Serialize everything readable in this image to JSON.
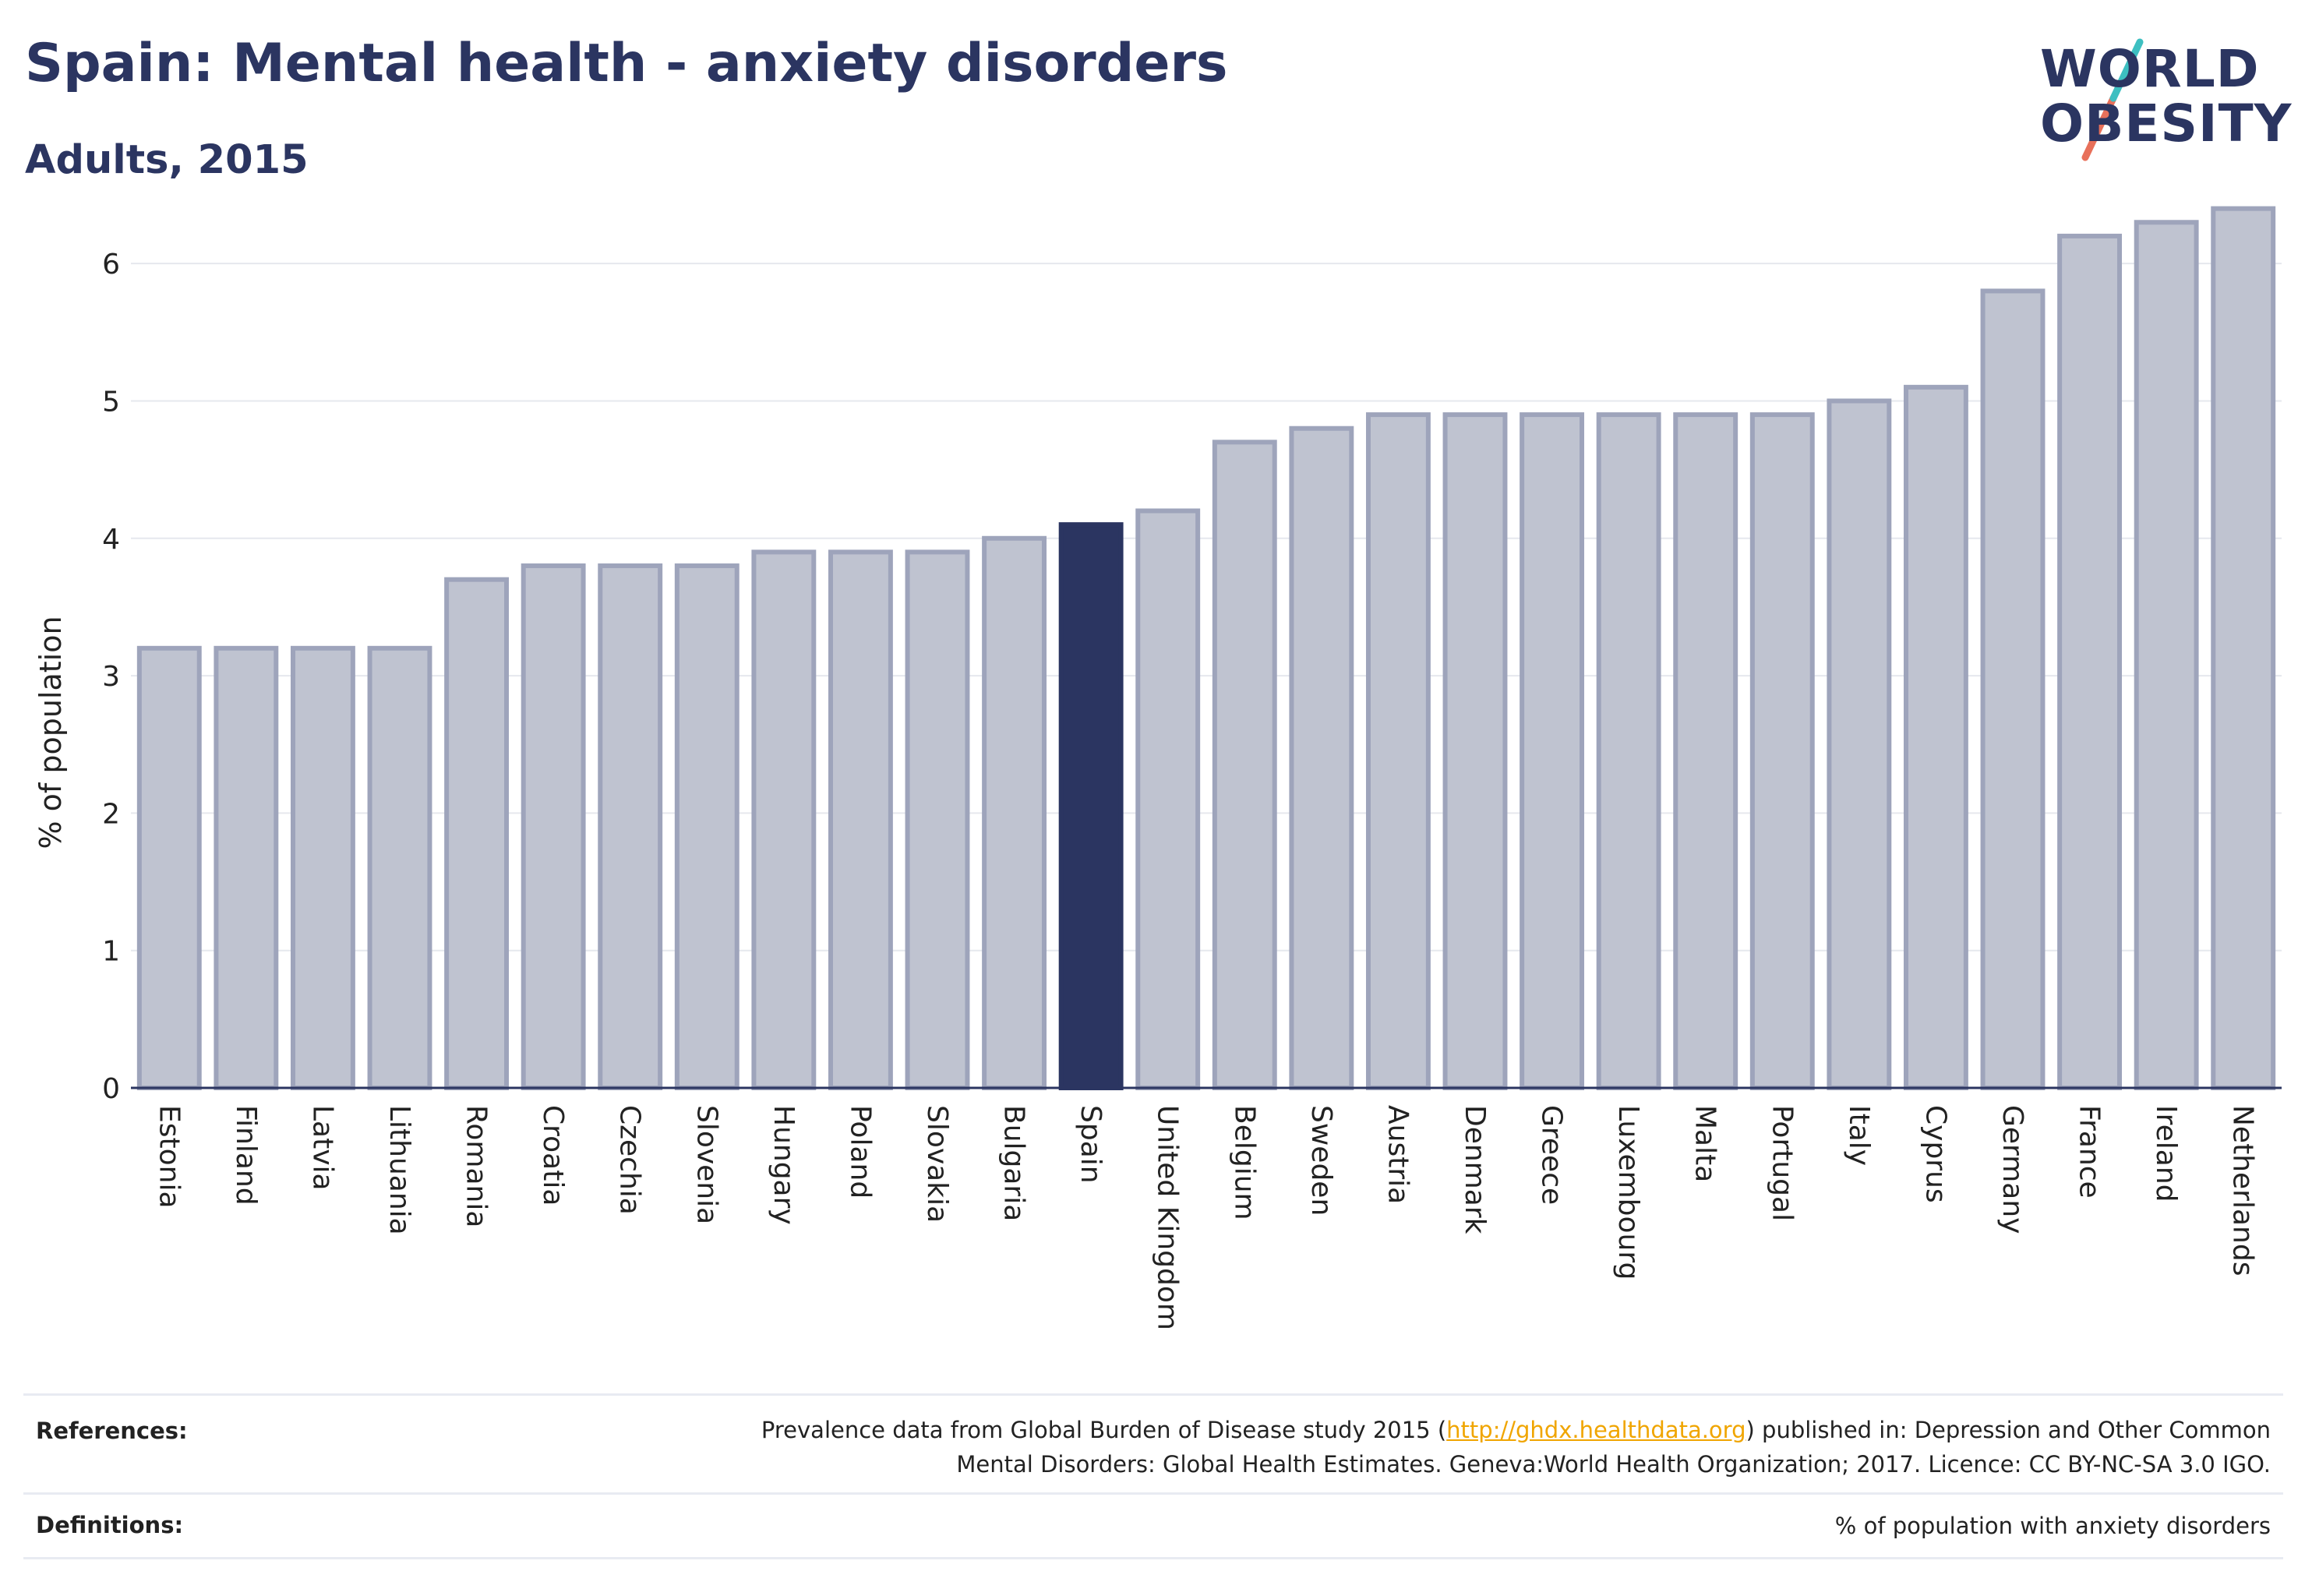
{
  "header": {
    "title": "Spain: Mental health - anxiety disorders",
    "subtitle": "Adults, 2015"
  },
  "logo": {
    "line1": "WORLD",
    "line2": "OBESITY",
    "colors": {
      "text": "#2b3561",
      "slash_top": "#3dbfc1",
      "slash_bottom": "#e8705a"
    }
  },
  "chart_data": {
    "type": "bar",
    "title": "",
    "xlabel": "",
    "ylabel": "% of population",
    "ylim": [
      0,
      6.5
    ],
    "yticks": [
      0,
      1,
      2,
      3,
      4,
      5,
      6
    ],
    "grid": true,
    "legend": "none",
    "highlight": "Spain",
    "colors": {
      "bar": "#bfc3d0",
      "bar_edge": "#9ea4bb",
      "highlight": "#2b3561",
      "grid": "#e6e8ee",
      "axis": "#2b3561"
    },
    "categories": [
      "Estonia",
      "Finland",
      "Latvia",
      "Lithuania",
      "Romania",
      "Croatia",
      "Czechia",
      "Slovenia",
      "Hungary",
      "Poland",
      "Slovakia",
      "Bulgaria",
      "Spain",
      "United Kingdom",
      "Belgium",
      "Sweden",
      "Austria",
      "Denmark",
      "Greece",
      "Luxembourg",
      "Malta",
      "Portugal",
      "Italy",
      "Cyprus",
      "Germany",
      "France",
      "Ireland",
      "Netherlands"
    ],
    "values": [
      3.2,
      3.2,
      3.2,
      3.2,
      3.7,
      3.8,
      3.8,
      3.8,
      3.9,
      3.9,
      3.9,
      4.0,
      4.1,
      4.2,
      4.7,
      4.8,
      4.9,
      4.9,
      4.9,
      4.9,
      4.9,
      4.9,
      5.0,
      5.1,
      5.8,
      6.2,
      6.3,
      6.4
    ]
  },
  "footer": {
    "references_label": "References:",
    "references_text_before": "Prevalence data from Global Burden of Disease study 2015 (",
    "references_link": "http://ghdx.healthdata.org",
    "references_text_after": ") published in: Depression and Other Common",
    "references_line2": "Mental Disorders: Global Health Estimates. Geneva:World Health Organization; 2017. Licence: CC BY-NC-SA 3.0 IGO.",
    "definitions_label": "Definitions:",
    "definitions_text": "% of population with anxiety disorders"
  }
}
